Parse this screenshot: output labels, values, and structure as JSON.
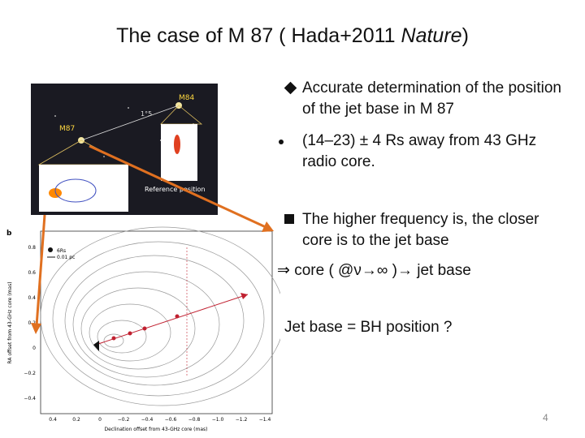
{
  "title": {
    "before": "The case of M 87 ( Hada+2011 ",
    "italic": "Nature",
    "after": ")"
  },
  "bullets": [
    {
      "text": "Accurate determination of the position of the jet base in M 87"
    },
    {
      "text": "(14‒23) ± 4 Rs away from 43 GHz radio core."
    },
    {
      "text": "The higher frequency is, the closer core is to the jet base"
    },
    {
      "text": "⇒ core ( @ν→∞ )→ jet base"
    }
  ],
  "question": "Jet base = BH position ?",
  "page_number": "4",
  "top_figure": {
    "labels": [
      "M84",
      "M87",
      "1°5",
      "Reference position"
    ]
  },
  "bottom_figure": {
    "panel": "b",
    "legend": [
      "6Rs",
      "0.01 pc"
    ],
    "y_label": "RA offset from 43-GHz core (mas)",
    "x_label": "Declination offset from 43-GHz core (mas)",
    "y_ticks": [
      "0.8",
      "0.6",
      "0.4",
      "0.2",
      "0",
      "−0.2",
      "−0.4"
    ],
    "x_ticks": [
      "0.4",
      "0.2",
      "0",
      "−0.2",
      "−0.4",
      "−0.6",
      "−0.8",
      "−1.0",
      "−1.2",
      "−1.4"
    ]
  }
}
